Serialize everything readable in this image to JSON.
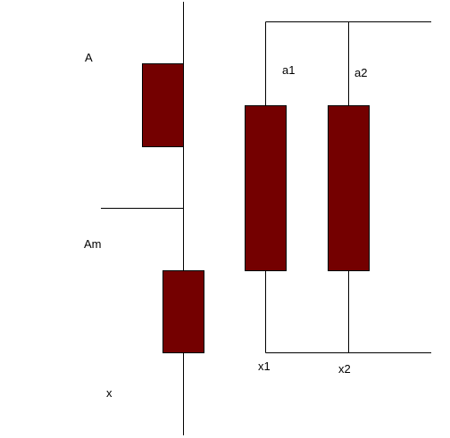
{
  "colors": {
    "winding_fill": "#740000",
    "line": "#000000",
    "background": "#ffffff"
  },
  "labels": {
    "terminal_a": "A",
    "terminal_am": "Am",
    "terminal_x": "x",
    "terminal_a1": "a1",
    "terminal_a2": "a2",
    "terminal_x1": "x1",
    "terminal_x2": "x2"
  }
}
